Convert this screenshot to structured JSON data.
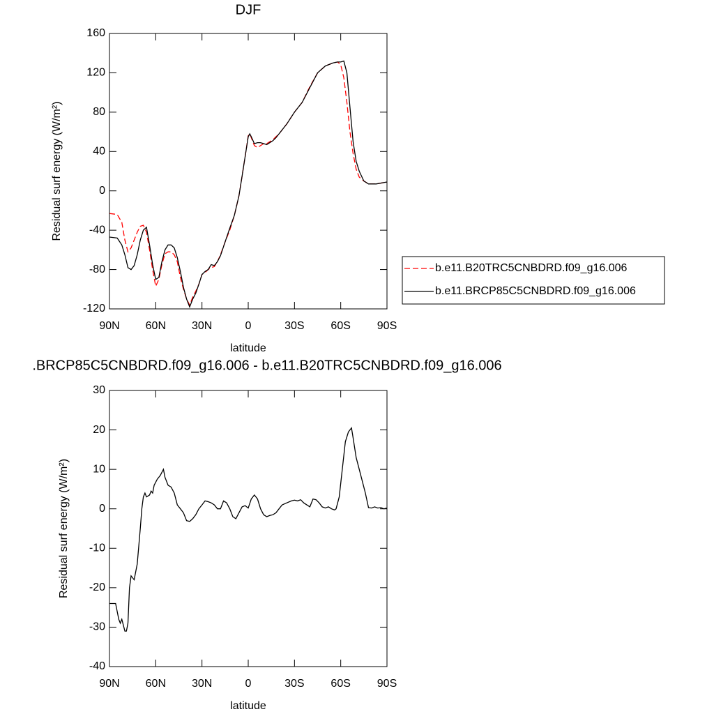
{
  "chart_data": [
    {
      "type": "line",
      "title": "DJF",
      "xlabel": "latitude",
      "ylabel": "Residual surf energy (W/m²)",
      "xlim": [
        90,
        -90
      ],
      "xticks": [
        {
          "value": 90,
          "label": "90N"
        },
        {
          "value": 60,
          "label": "60N"
        },
        {
          "value": 30,
          "label": "30N"
        },
        0,
        {
          "value": -30,
          "label": "30S"
        },
        {
          "value": -60,
          "label": "60S"
        },
        {
          "value": -90,
          "label": "90S"
        }
      ],
      "ylim": [
        -120,
        160
      ],
      "yticks": [
        -120,
        -80,
        -40,
        0,
        40,
        80,
        120,
        160
      ],
      "legend": "right",
      "x": [
        90,
        85,
        82,
        80,
        78,
        76,
        74,
        72,
        70,
        68,
        66,
        64,
        62,
        60,
        58,
        56,
        54,
        52,
        50,
        48,
        46,
        44,
        42,
        40,
        38,
        36,
        34,
        32,
        30,
        28,
        26,
        24,
        22,
        20,
        18,
        15,
        12,
        9,
        6,
        4,
        2,
        0,
        -1,
        -2,
        -4,
        -6,
        -8,
        -10,
        -12,
        -14,
        -16,
        -18,
        -20,
        -25,
        -30,
        -35,
        -40,
        -45,
        -50,
        -55,
        -58,
        -60,
        -62,
        -64,
        -66,
        -68,
        -70,
        -72,
        -75,
        -78,
        -83,
        -90
      ],
      "series": [
        {
          "name": "b.e11.B20TRC5CNBDRD.f09_g16.006",
          "color": "#ff0000",
          "linestyle": "dashed",
          "values": [
            -23,
            -24,
            -32,
            -50,
            -62,
            -58,
            -50,
            -42,
            -36,
            -35,
            -42,
            -60,
            -80,
            -97,
            -90,
            -75,
            -64,
            -62,
            -62,
            -65,
            -72,
            -88,
            -100,
            -110,
            -116,
            -108,
            -102,
            -95,
            -85,
            -83,
            -80,
            -78,
            -77,
            -72,
            -65,
            -52,
            -40,
            -25,
            -5,
            15,
            35,
            56,
            58,
            54,
            46,
            44,
            46,
            48,
            48,
            50,
            52,
            55,
            58,
            68,
            80,
            90,
            106,
            120,
            127,
            130,
            131,
            128,
            115,
            90,
            60,
            38,
            22,
            14,
            10,
            7,
            7,
            9
          ]
        },
        {
          "name": "b.e11.BRCP85C5CNBDRD.f09_g16.006",
          "color": "#000000",
          "linestyle": "solid",
          "values": [
            -47,
            -48,
            -55,
            -65,
            -78,
            -80,
            -76,
            -65,
            -50,
            -40,
            -37,
            -55,
            -75,
            -90,
            -88,
            -72,
            -60,
            -55,
            -55,
            -58,
            -68,
            -82,
            -98,
            -110,
            -118,
            -110,
            -104,
            -95,
            -85,
            -82,
            -80,
            -75,
            -76,
            -72,
            -66,
            -52,
            -38,
            -25,
            -5,
            15,
            35,
            55,
            58,
            55,
            48,
            49,
            49,
            48,
            47,
            49,
            51,
            54,
            58,
            68,
            80,
            90,
            105,
            120,
            127,
            130,
            131,
            131,
            132,
            120,
            85,
            50,
            30,
            20,
            10,
            7,
            7,
            9
          ]
        }
      ]
    },
    {
      "type": "line",
      "title": ".BRCP85C5CNBDRD.f09_g16.006 - b.e11.B20TRC5CNBDRD.f09_g16.006",
      "xlabel": "latitude",
      "ylabel": "Residual surf energy (W/m²)",
      "xlim": [
        90,
        -90
      ],
      "xticks": [
        {
          "value": 90,
          "label": "90N"
        },
        {
          "value": 60,
          "label": "60N"
        },
        {
          "value": 30,
          "label": "30N"
        },
        0,
        {
          "value": -30,
          "label": "30S"
        },
        {
          "value": -60,
          "label": "60S"
        },
        {
          "value": -90,
          "label": "90S"
        }
      ],
      "ylim": [
        -40,
        30
      ],
      "yticks": [
        -40,
        -30,
        -20,
        -10,
        0,
        10,
        20,
        30
      ],
      "color": "#000000",
      "x": [
        90,
        86,
        84,
        83,
        82,
        80,
        79,
        78,
        77,
        76,
        74,
        73,
        72,
        70,
        69,
        68,
        67,
        66,
        64,
        63,
        62,
        61,
        59,
        57,
        55,
        54,
        52,
        50,
        48,
        46,
        44,
        42,
        40,
        38,
        36,
        34,
        32,
        30,
        28,
        26,
        24,
        22,
        20,
        18,
        16,
        14,
        12,
        10,
        8,
        6,
        4,
        2,
        0,
        -2,
        -4,
        -6,
        -8,
        -10,
        -12,
        -14,
        -16,
        -18,
        -20,
        -22,
        -25,
        -28,
        -30,
        -32,
        -34,
        -36,
        -38,
        -40,
        -42,
        -44,
        -46,
        -48,
        -50,
        -52,
        -54,
        -56,
        -57,
        -59,
        -61,
        -63,
        -65,
        -67,
        -68,
        -70,
        -72,
        -74,
        -76,
        -78,
        -80,
        -82,
        -84,
        -86,
        -88,
        -90
      ],
      "values": [
        -24,
        -24,
        -28,
        -29,
        -28,
        -31,
        -31,
        -29,
        -20,
        -17,
        -18,
        -16,
        -14,
        -5,
        0,
        3,
        4,
        3,
        3.5,
        4.5,
        4,
        6,
        7.5,
        8.5,
        10,
        8,
        6,
        5.5,
        4,
        1,
        0,
        -1,
        -3,
        -3.2,
        -2.5,
        -1.5,
        0,
        1,
        2,
        1.8,
        1.5,
        1,
        0,
        0,
        2,
        1.5,
        0,
        -2,
        -2.5,
        -1,
        0.5,
        0.8,
        0.2,
        2.5,
        3.5,
        2.5,
        0,
        -1.5,
        -2,
        -1.7,
        -1.5,
        -1,
        0,
        1,
        1.5,
        2,
        2.2,
        2,
        2.3,
        1.5,
        1,
        0.5,
        2.5,
        2.3,
        1.5,
        0.5,
        0.2,
        0.5,
        0,
        -0.3,
        0,
        3,
        10,
        17,
        19.5,
        20.5,
        18,
        13,
        10,
        7,
        4,
        0.3,
        0.2,
        0.5,
        0.2,
        0.3,
        0,
        0.2
      ]
    }
  ]
}
